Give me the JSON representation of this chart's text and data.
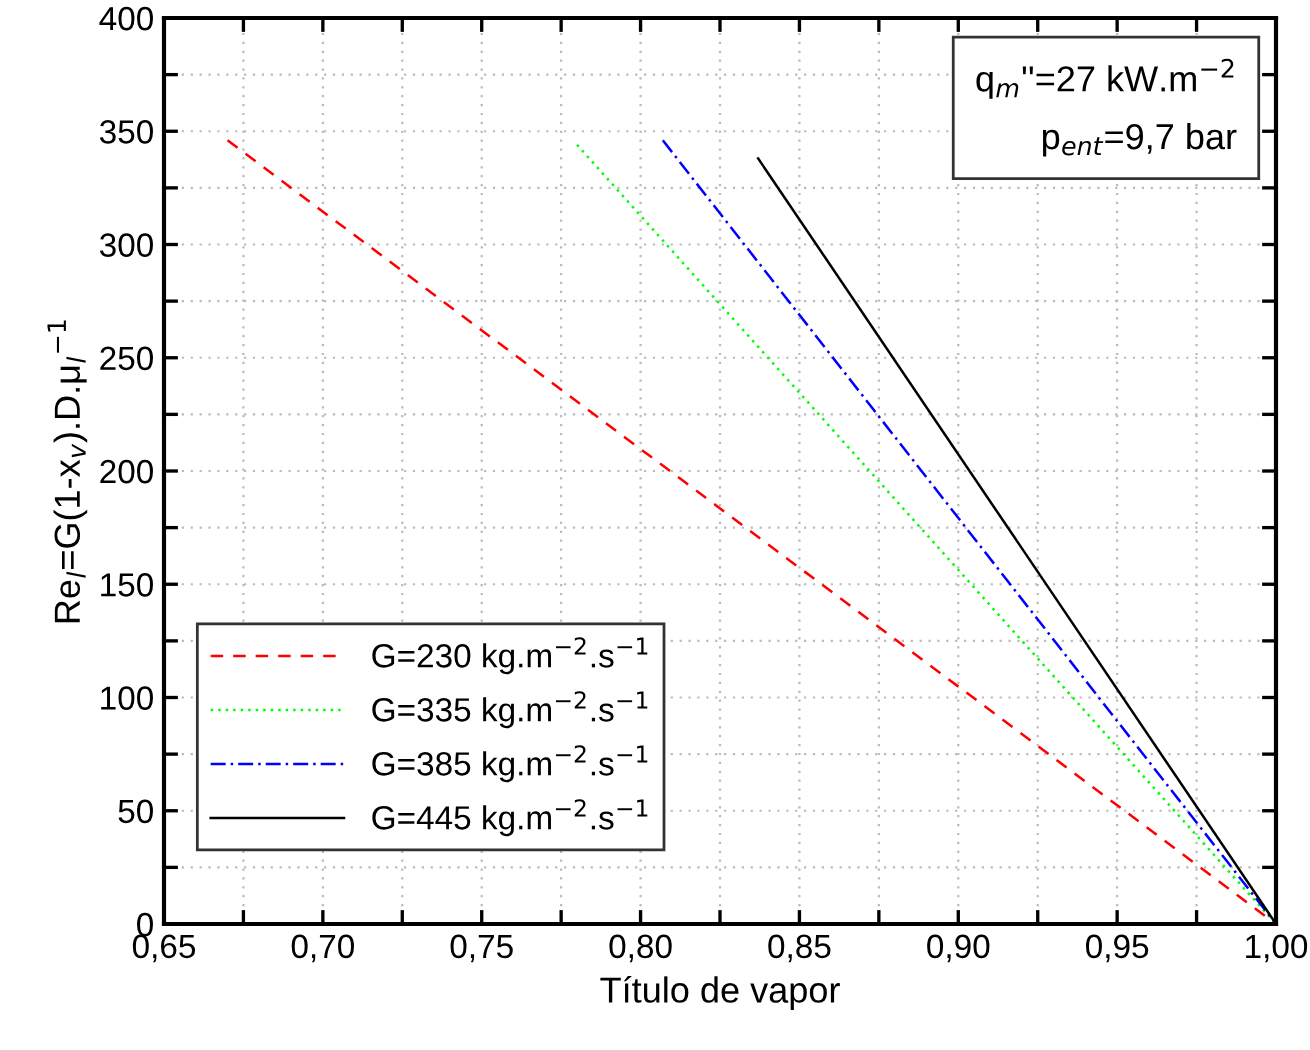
{
  "chart_data": {
    "type": "line",
    "xlabel": "Título de vapor",
    "ylabel": "Re$_{l}$=G(1-x$_{v}$).D.μ$_{l}$$^{−1}$",
    "xlim": [
      0.65,
      1.0
    ],
    "ylim": [
      0,
      400
    ],
    "xticks": [
      {
        "value": 0.65,
        "label": "0,65"
      },
      {
        "value": 0.675,
        "label": null
      },
      {
        "value": 0.7,
        "label": "0,70"
      },
      {
        "value": 0.725,
        "label": null
      },
      {
        "value": 0.75,
        "label": "0,75"
      },
      {
        "value": 0.775,
        "label": null
      },
      {
        "value": 0.8,
        "label": "0,80"
      },
      {
        "value": 0.825,
        "label": null
      },
      {
        "value": 0.85,
        "label": "0,85"
      },
      {
        "value": 0.875,
        "label": null
      },
      {
        "value": 0.9,
        "label": "0,90"
      },
      {
        "value": 0.925,
        "label": null
      },
      {
        "value": 0.95,
        "label": "0,95"
      },
      {
        "value": 0.975,
        "label": null
      },
      {
        "value": 1.0,
        "label": "1,00"
      }
    ],
    "yticks": [
      0,
      {
        "value": 25,
        "label": null
      },
      50,
      {
        "value": 75,
        "label": null
      },
      100,
      {
        "value": 125,
        "label": null
      },
      150,
      {
        "value": 175,
        "label": null
      },
      200,
      {
        "value": 225,
        "label": null
      },
      250,
      {
        "value": 275,
        "label": null
      },
      300,
      {
        "value": 325,
        "label": null
      },
      350,
      {
        "value": 375,
        "label": null
      },
      400
    ],
    "grid": true,
    "legend": "bottom left",
    "annotations": [
      "q$_{m}$''=27 kW.m$^{−2}$",
      "p$_{ent}$=9,7 bar"
    ],
    "series": [
      {
        "name": "G=230 kg.m$^{−2}$.s$^{−1}$",
        "color": "#ff0000",
        "line_style": "dashed",
        "x": [
          0.67,
          1.0
        ],
        "values": [
          346,
          0
        ]
      },
      {
        "name": "G=335 kg.m$^{−2}$.s$^{−1}$",
        "color": "#00ff00",
        "line_style": "dotted",
        "x": [
          0.78,
          1.0
        ],
        "values": [
          344,
          0
        ]
      },
      {
        "name": "G=385 kg.m$^{−2}$.s$^{−1}$",
        "color": "#0000ff",
        "line_style": "dashdot",
        "x": [
          0.807,
          1.0
        ],
        "values": [
          346,
          0
        ]
      },
      {
        "name": "G=445 kg.m$^{−2}$.s$^{−1}$",
        "color": "#000000",
        "line_style": "solid",
        "x": [
          0.837,
          1.0
        ],
        "values": [
          338,
          0
        ]
      }
    ]
  }
}
